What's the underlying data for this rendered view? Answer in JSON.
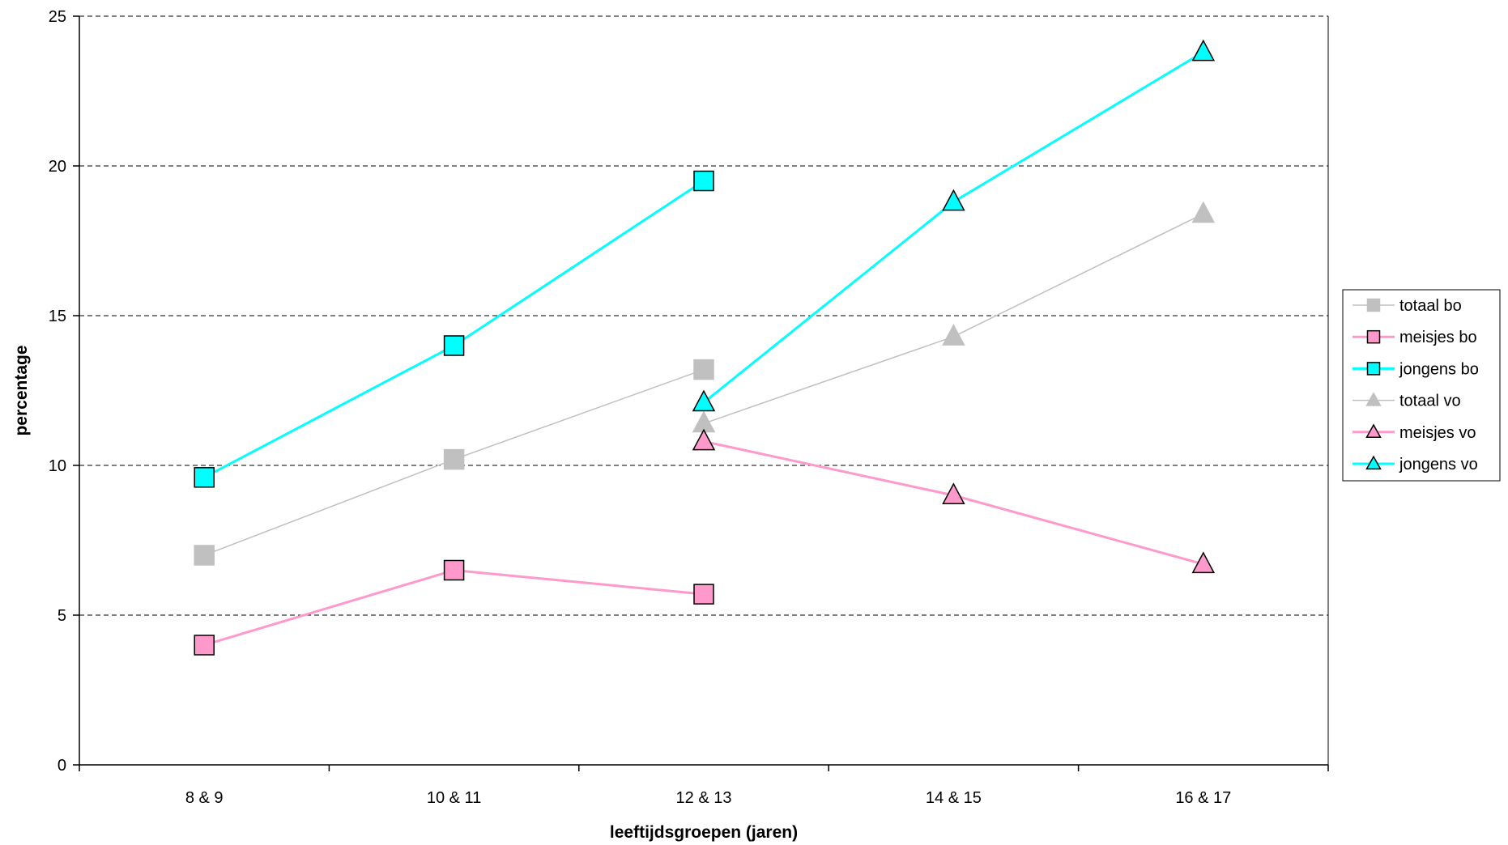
{
  "chart_data": {
    "type": "line",
    "title": "",
    "xlabel": "leeftijdsgroepen (jaren)",
    "ylabel": "percentage",
    "categories": [
      "8 & 9",
      "10 & 11",
      "12 & 13",
      "14 & 15",
      "16 & 17"
    ],
    "ylim": [
      0,
      25
    ],
    "yticks": [
      "0",
      "5",
      "10",
      "15",
      "20",
      "25"
    ],
    "grid": "horizontal dashed",
    "legend_position": "right",
    "series": [
      {
        "name": "totaal bo",
        "color": "#c0c0c0",
        "marker": "square",
        "values": [
          7.0,
          10.2,
          13.2,
          null,
          null
        ]
      },
      {
        "name": "meisjes bo",
        "color": "#ff99cc",
        "marker": "square",
        "values": [
          4.0,
          6.5,
          5.7,
          null,
          null
        ]
      },
      {
        "name": "jongens bo",
        "color": "#00ffff",
        "marker": "square",
        "values": [
          9.6,
          14.0,
          19.5,
          null,
          null
        ]
      },
      {
        "name": "totaal vo",
        "color": "#c0c0c0",
        "marker": "triangle",
        "values": [
          null,
          null,
          11.4,
          14.3,
          18.4
        ]
      },
      {
        "name": "meisjes vo",
        "color": "#ff99cc",
        "marker": "triangle",
        "values": [
          null,
          null,
          10.8,
          9.0,
          6.7
        ]
      },
      {
        "name": "jongens vo",
        "color": "#00ffff",
        "marker": "triangle",
        "values": [
          null,
          null,
          12.1,
          18.8,
          23.8
        ]
      }
    ]
  }
}
